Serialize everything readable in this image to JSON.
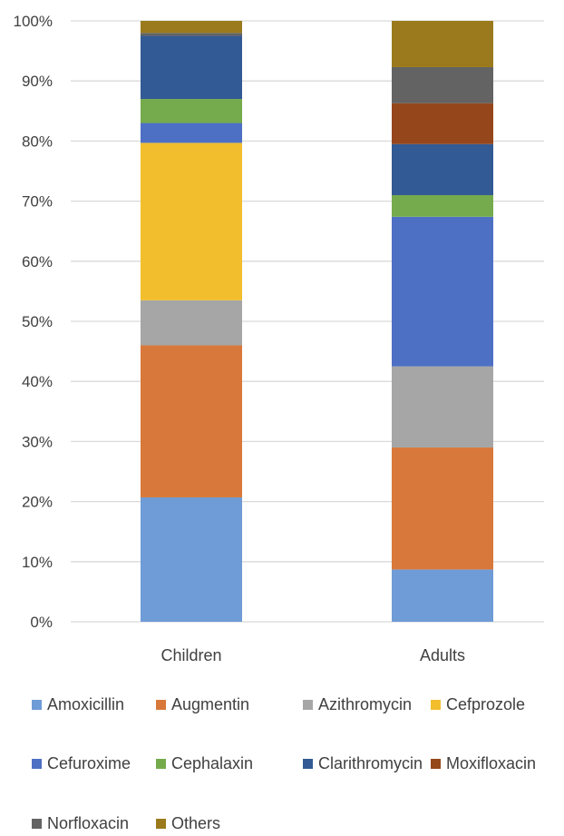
{
  "chart_data": {
    "type": "bar",
    "stacked": "percent",
    "categories": [
      "Children",
      "Adults"
    ],
    "ylim": [
      0,
      100
    ],
    "y_ticks": [
      "0%",
      "10%",
      "20%",
      "30%",
      "40%",
      "50%",
      "60%",
      "70%",
      "80%",
      "90%",
      "100%"
    ],
    "grid": true,
    "legend_position": "bottom",
    "series": [
      {
        "name": "Amoxicillin",
        "color": "#6f9bd6",
        "values": [
          20.7,
          8.7
        ]
      },
      {
        "name": "Augmentin",
        "color": "#d9783b",
        "values": [
          25.3,
          20.3
        ]
      },
      {
        "name": "Azithromycin",
        "color": "#a6a6a6",
        "values": [
          7.5,
          13.5
        ]
      },
      {
        "name": "Cefprozole",
        "color": "#f2be2e",
        "values": [
          26.2,
          0.0
        ]
      },
      {
        "name": "Cefuroxime",
        "color": "#4e70c4",
        "values": [
          3.3,
          24.9
        ]
      },
      {
        "name": "Cephalaxin",
        "color": "#75ab4c",
        "values": [
          4.0,
          3.6
        ]
      },
      {
        "name": "Clarithromycin",
        "color": "#325a94",
        "values": [
          10.5,
          8.5
        ]
      },
      {
        "name": "Moxifloxacin",
        "color": "#96461b",
        "values": [
          0.0,
          6.8
        ]
      },
      {
        "name": "Norfloxacin",
        "color": "#636363",
        "values": [
          0.5,
          6.0
        ]
      },
      {
        "name": "Others",
        "color": "#9a7a1c",
        "values": [
          2.0,
          7.7
        ]
      }
    ]
  }
}
